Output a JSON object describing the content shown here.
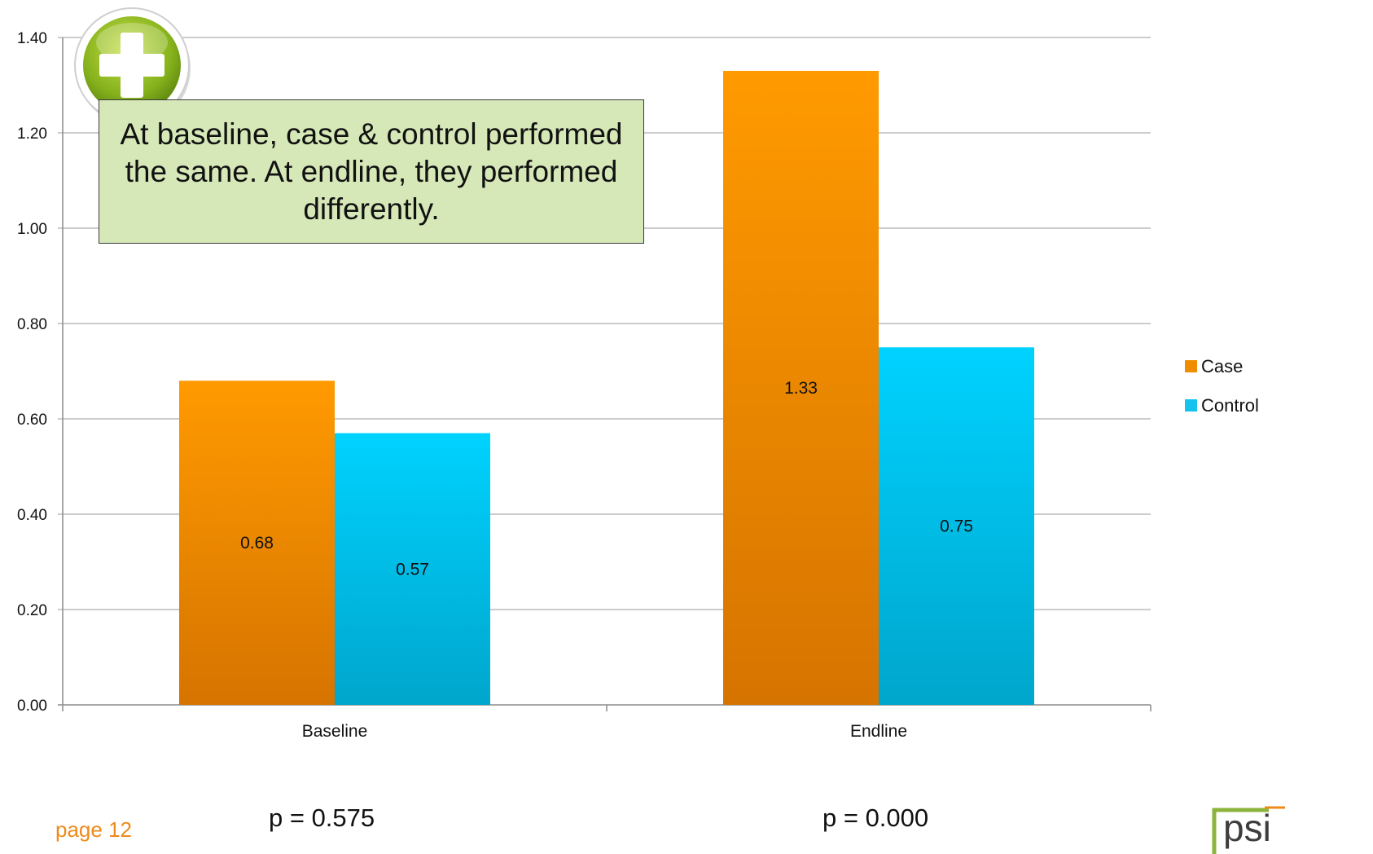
{
  "chart_data": {
    "type": "bar",
    "categories": [
      "Baseline",
      "Endline"
    ],
    "series": [
      {
        "name": "Case",
        "values": [
          0.68,
          1.33
        ],
        "color": "#f08c00",
        "data_labels": [
          "0.68",
          "1.33"
        ]
      },
      {
        "name": "Control",
        "values": [
          0.57,
          0.75
        ],
        "color": "#14c4ee",
        "data_labels": [
          "0.57",
          "0.75"
        ]
      }
    ],
    "ylim": [
      0,
      1.4
    ],
    "yticks": [
      "0.00",
      "0.20",
      "0.40",
      "0.60",
      "0.80",
      "1.00",
      "1.20",
      "1.40"
    ],
    "grid": true,
    "legend_position": "right",
    "xlabel": "",
    "ylabel": "",
    "title": ""
  },
  "annotations": {
    "callout": "At baseline, case & control performed the same. At endline, they performed differently.",
    "p_values": [
      "p = 0.575",
      "p = 0.000"
    ],
    "page_label": "page 12",
    "logo_text": "psi",
    "badge_icon": "plus-icon"
  },
  "colors": {
    "case": "#f08c00",
    "control": "#14c4ee",
    "callout_bg": "#d6e8b8",
    "page_label": "#ef8a1a",
    "logo_green": "#8cb43c"
  }
}
